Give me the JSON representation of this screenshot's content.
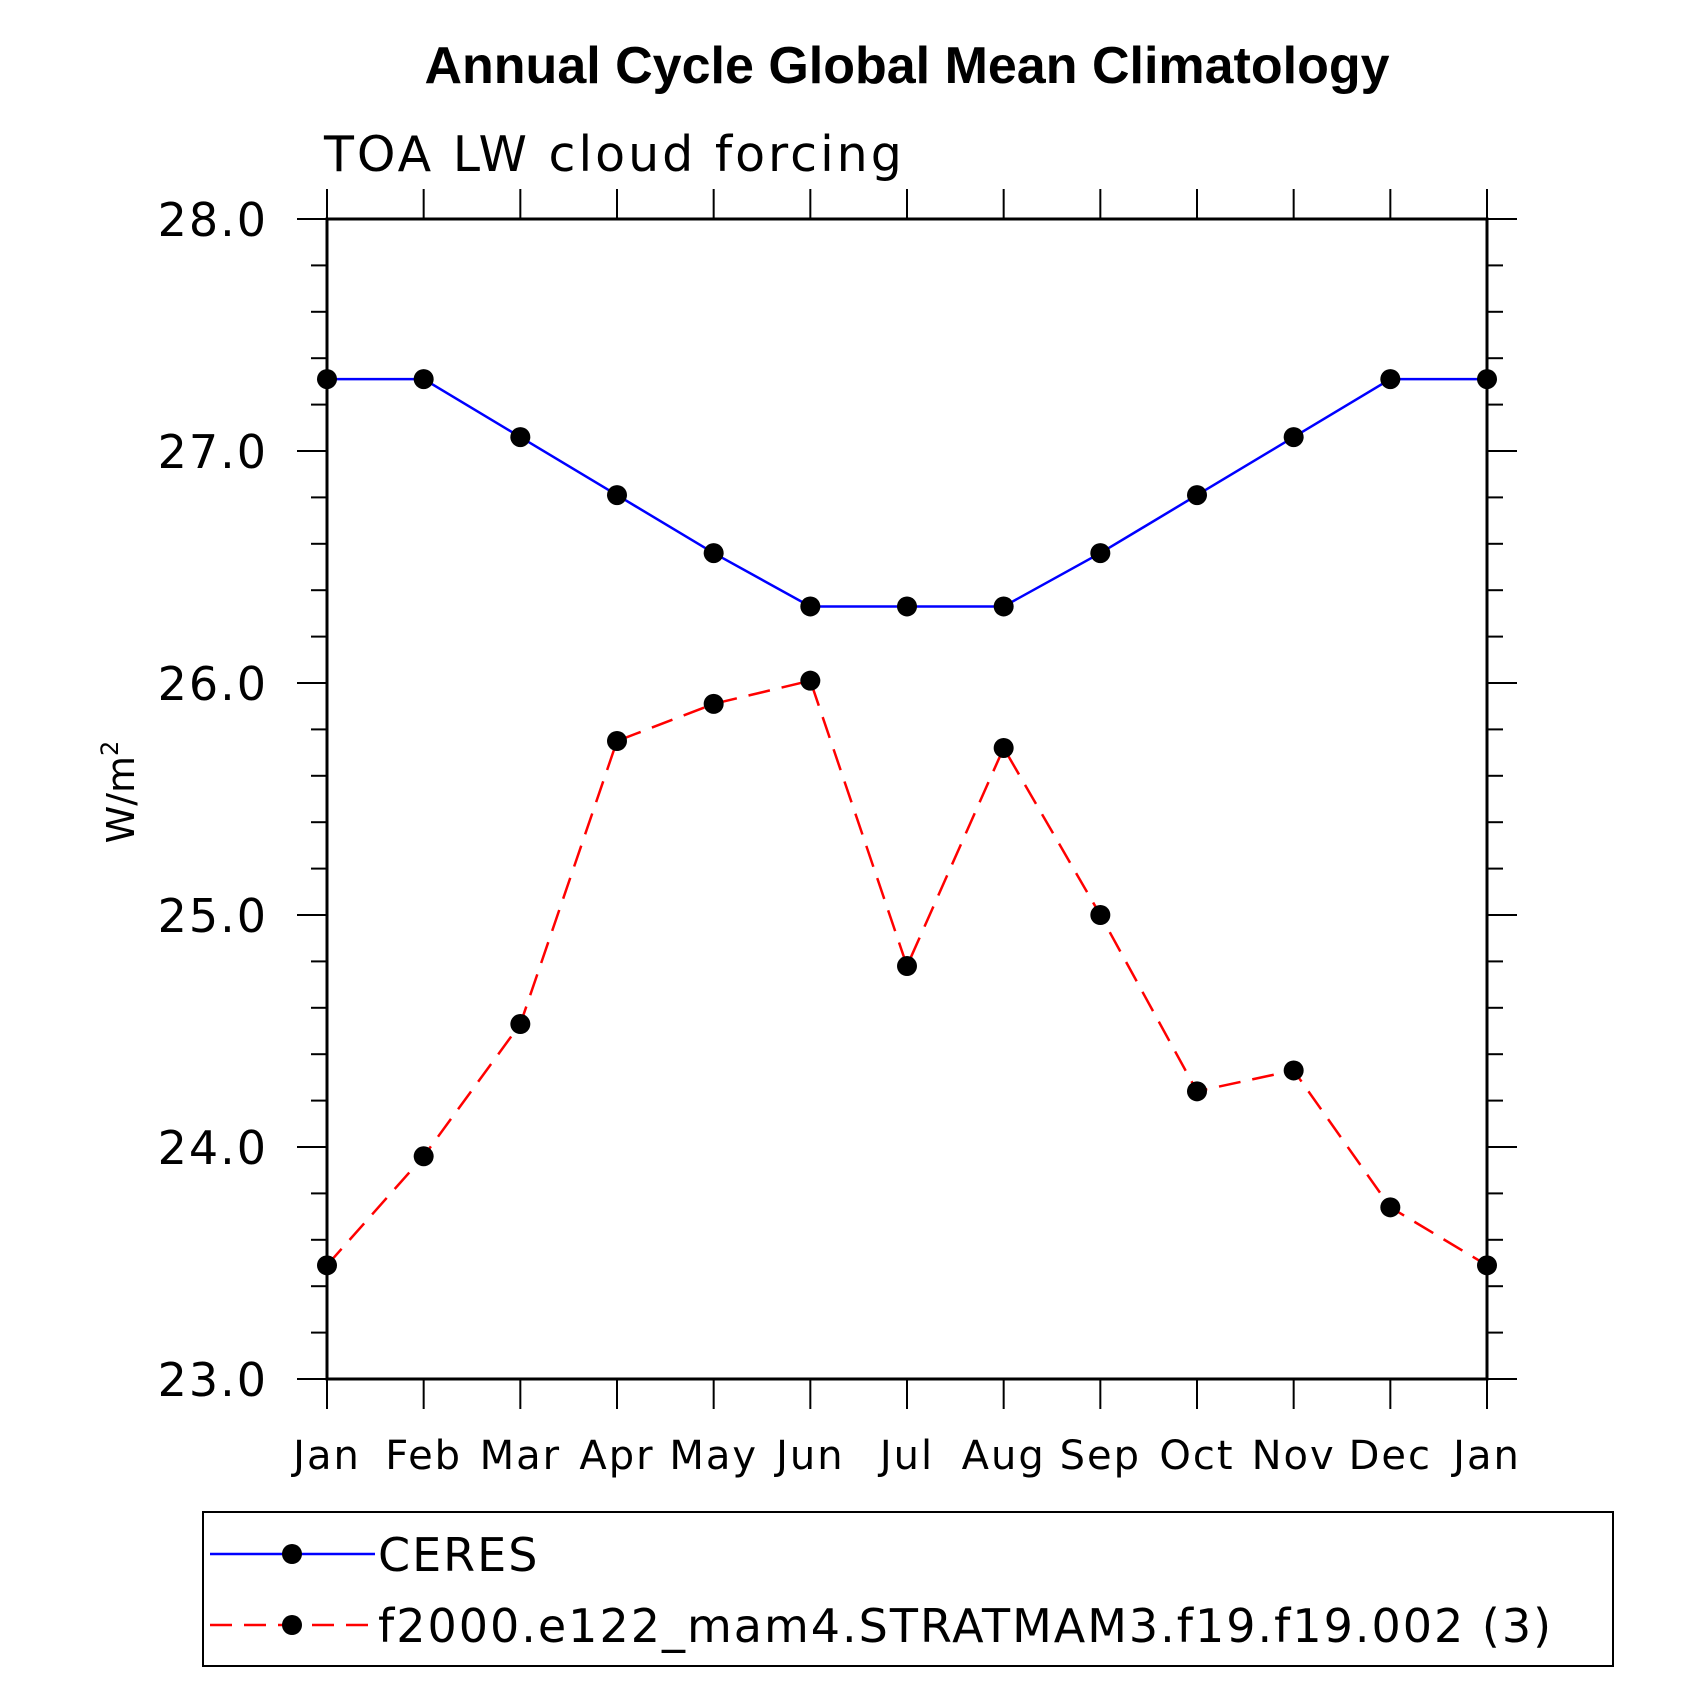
{
  "chart_data": {
    "type": "line",
    "title": "Annual Cycle Global Mean Climatology",
    "subtitle": "TOA LW cloud forcing",
    "ylabel_base": "W/m",
    "ylabel_sup": "2",
    "xlabel": "",
    "ylim": [
      23.0,
      28.0
    ],
    "ytick_values": [
      23.0,
      24.0,
      25.0,
      26.0,
      27.0,
      28.0
    ],
    "ytick_labels": [
      "23.0",
      "24.0",
      "25.0",
      "26.0",
      "27.0",
      "28.0"
    ],
    "categories": [
      "Jan",
      "Feb",
      "Mar",
      "Apr",
      "May",
      "Jun",
      "Jul",
      "Aug",
      "Sep",
      "Oct",
      "Nov",
      "Dec",
      "Jan"
    ],
    "series": [
      {
        "name": "CERES",
        "color": "#0000ff",
        "dash": "solid",
        "values": [
          27.31,
          27.31,
          27.06,
          26.81,
          26.56,
          26.33,
          26.33,
          26.33,
          26.56,
          26.81,
          27.06,
          27.31,
          27.31
        ]
      },
      {
        "name": "f2000.e122_mam4.STRATMAM3.f19.f19.002 (3)",
        "color": "#ff0000",
        "dash": "dashed",
        "values": [
          23.49,
          23.96,
          24.53,
          25.75,
          25.91,
          26.01,
          24.78,
          25.72,
          25.0,
          24.24,
          24.33,
          23.74,
          23.49
        ]
      }
    ],
    "legend_position": "bottom"
  }
}
